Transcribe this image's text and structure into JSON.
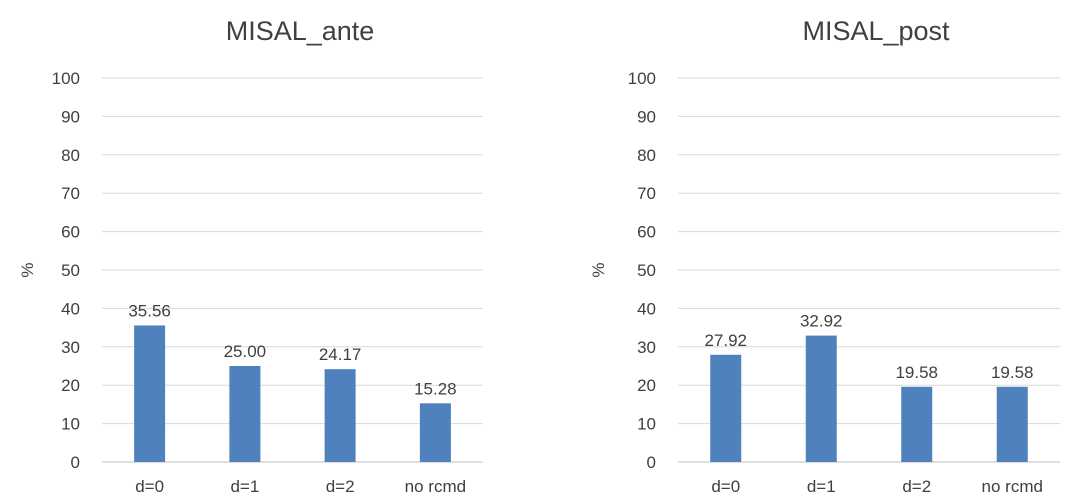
{
  "chart_data": [
    {
      "type": "bar",
      "title": "MISAL_ante",
      "ylabel": "%",
      "xlabel": "",
      "ylim": [
        0,
        100
      ],
      "yticks": [
        0,
        10,
        20,
        30,
        40,
        50,
        60,
        70,
        80,
        90,
        100
      ],
      "grid": true,
      "categories": [
        "d=0",
        "d=1",
        "d=2",
        "no rcmd"
      ],
      "values": [
        35.56,
        25.0,
        24.17,
        15.28
      ],
      "data_labels": [
        "35.56",
        "25.00",
        "24.17",
        "15.28"
      ],
      "bar_color": "#4F81BD"
    },
    {
      "type": "bar",
      "title": "MISAL_post",
      "ylabel": "%",
      "xlabel": "",
      "ylim": [
        0,
        100
      ],
      "yticks": [
        0,
        10,
        20,
        30,
        40,
        50,
        60,
        70,
        80,
        90,
        100
      ],
      "grid": true,
      "categories": [
        "d=0",
        "d=1",
        "d=2",
        "no rcmd"
      ],
      "values": [
        27.92,
        32.92,
        19.58,
        19.58
      ],
      "data_labels": [
        "27.92",
        "32.92",
        "19.58",
        "19.58"
      ],
      "bar_color": "#4F81BD"
    }
  ]
}
